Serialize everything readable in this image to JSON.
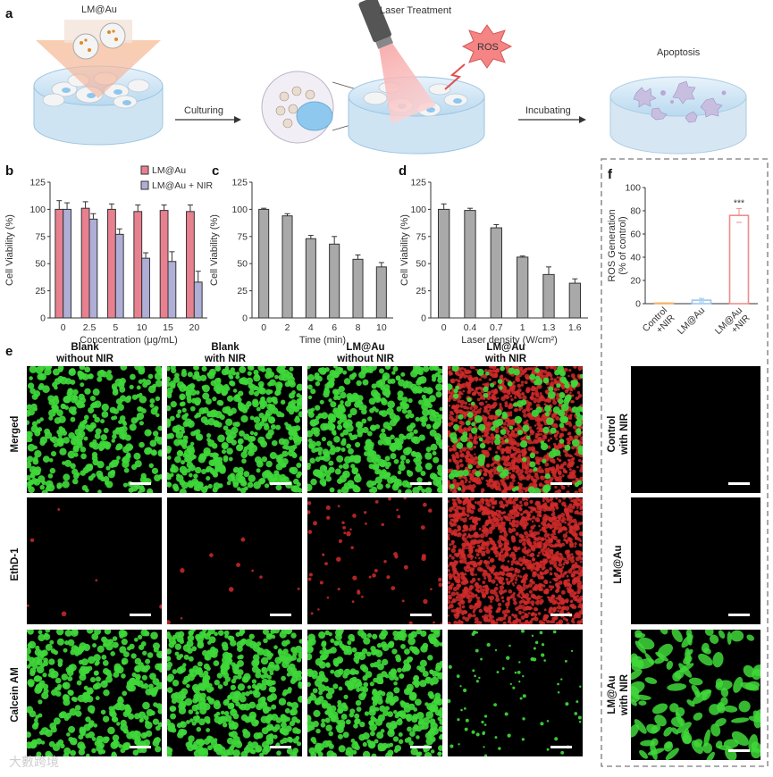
{
  "panel_a": {
    "letter": "a",
    "material_label": "LM@Au",
    "laser_label": "Laser Treatment",
    "ros_label": "ROS",
    "step1": "Culturing",
    "step2": "Incubating",
    "outcome": "Apoptosis"
  },
  "panel_b": {
    "letter": "b"
  },
  "panel_c": {
    "letter": "c"
  },
  "panel_d": {
    "letter": "d"
  },
  "panel_e": {
    "letter": "e",
    "columns": [
      {
        "line1": "Blank",
        "line2": "without NIR"
      },
      {
        "line1": "Blank",
        "line2": "with NIR"
      },
      {
        "line1": "LM@Au",
        "line2": "without NIR"
      },
      {
        "line1": "LM@Au",
        "line2": "with NIR"
      }
    ],
    "rows": [
      "Merged",
      "EthD-1",
      "Calcein AM"
    ]
  },
  "panel_f": {
    "letter": "f",
    "rows": [
      {
        "line1": "Control",
        "line2": "with NIR"
      },
      {
        "line1": "LM@Au",
        "line2": ""
      },
      {
        "line1": "LM@Au",
        "line2": "with NIR"
      }
    ]
  },
  "watermark": "大數跨境",
  "colors": {
    "lm_au": "#e8808f",
    "lm_au_nir": "#aeaed6",
    "gray_bar": "#a9a9a9",
    "ros_control": "#f2b36b",
    "ros_lmau": "#9cc7ee",
    "ros_lmau_nir": "#f08c8c",
    "green": "#3fd83a",
    "red": "#d02a2a"
  },
  "chart_data": [
    {
      "id": "b",
      "type": "bar",
      "categories": [
        "0",
        "2.5",
        "5",
        "10",
        "15",
        "20"
      ],
      "series": [
        {
          "name": "LM@Au",
          "values": [
            100,
            101,
            100,
            98,
            99,
            98
          ],
          "errors": [
            8,
            6,
            5,
            6,
            5,
            6
          ]
        },
        {
          "name": "LM@Au + NIR",
          "values": [
            100,
            91,
            77,
            55,
            52,
            33
          ],
          "errors": [
            6,
            5,
            5,
            5,
            9,
            10
          ]
        }
      ],
      "xlabel": "Concentration (μg/mL)",
      "ylabel": "Cell Viability (%)",
      "ylim": [
        0,
        125
      ],
      "yticks": [
        0,
        25,
        50,
        75,
        100,
        125
      ],
      "legend": "top-right"
    },
    {
      "id": "c",
      "type": "bar",
      "categories": [
        "0",
        "2",
        "4",
        "6",
        "8",
        "10"
      ],
      "series": [
        {
          "values": [
            100,
            94,
            73,
            68,
            54,
            47
          ],
          "errors": [
            1,
            2,
            3,
            7,
            4,
            4
          ]
        }
      ],
      "xlabel": "Time (min)",
      "ylabel": "Cell Viability (%)",
      "ylim": [
        0,
        125
      ],
      "yticks": [
        0,
        25,
        50,
        75,
        100,
        125
      ]
    },
    {
      "id": "d",
      "type": "bar",
      "categories": [
        "0",
        "0.4",
        "0.7",
        "1",
        "1.3",
        "1.6"
      ],
      "series": [
        {
          "values": [
            100,
            99,
            83,
            56,
            40,
            32
          ],
          "errors": [
            5,
            2,
            3,
            1,
            7,
            4
          ]
        }
      ],
      "xlabel": "Laser density (W/cm²)",
      "ylabel": "Cell Viability (%)",
      "ylim": [
        0,
        125
      ],
      "yticks": [
        0,
        25,
        50,
        75,
        100,
        125
      ]
    },
    {
      "id": "f",
      "type": "bar",
      "categories": [
        "Control +NIR",
        "LM@Au",
        "LM@Au +NIR"
      ],
      "series": [
        {
          "values": [
            0.5,
            3,
            76
          ],
          "errors": [
            0.3,
            1.5,
            6
          ]
        }
      ],
      "ylabel": "ROS Generation (% of control)",
      "ylim": [
        0,
        100
      ],
      "yticks": [
        0,
        20,
        40,
        60,
        80,
        100
      ],
      "annotation": "***"
    }
  ]
}
